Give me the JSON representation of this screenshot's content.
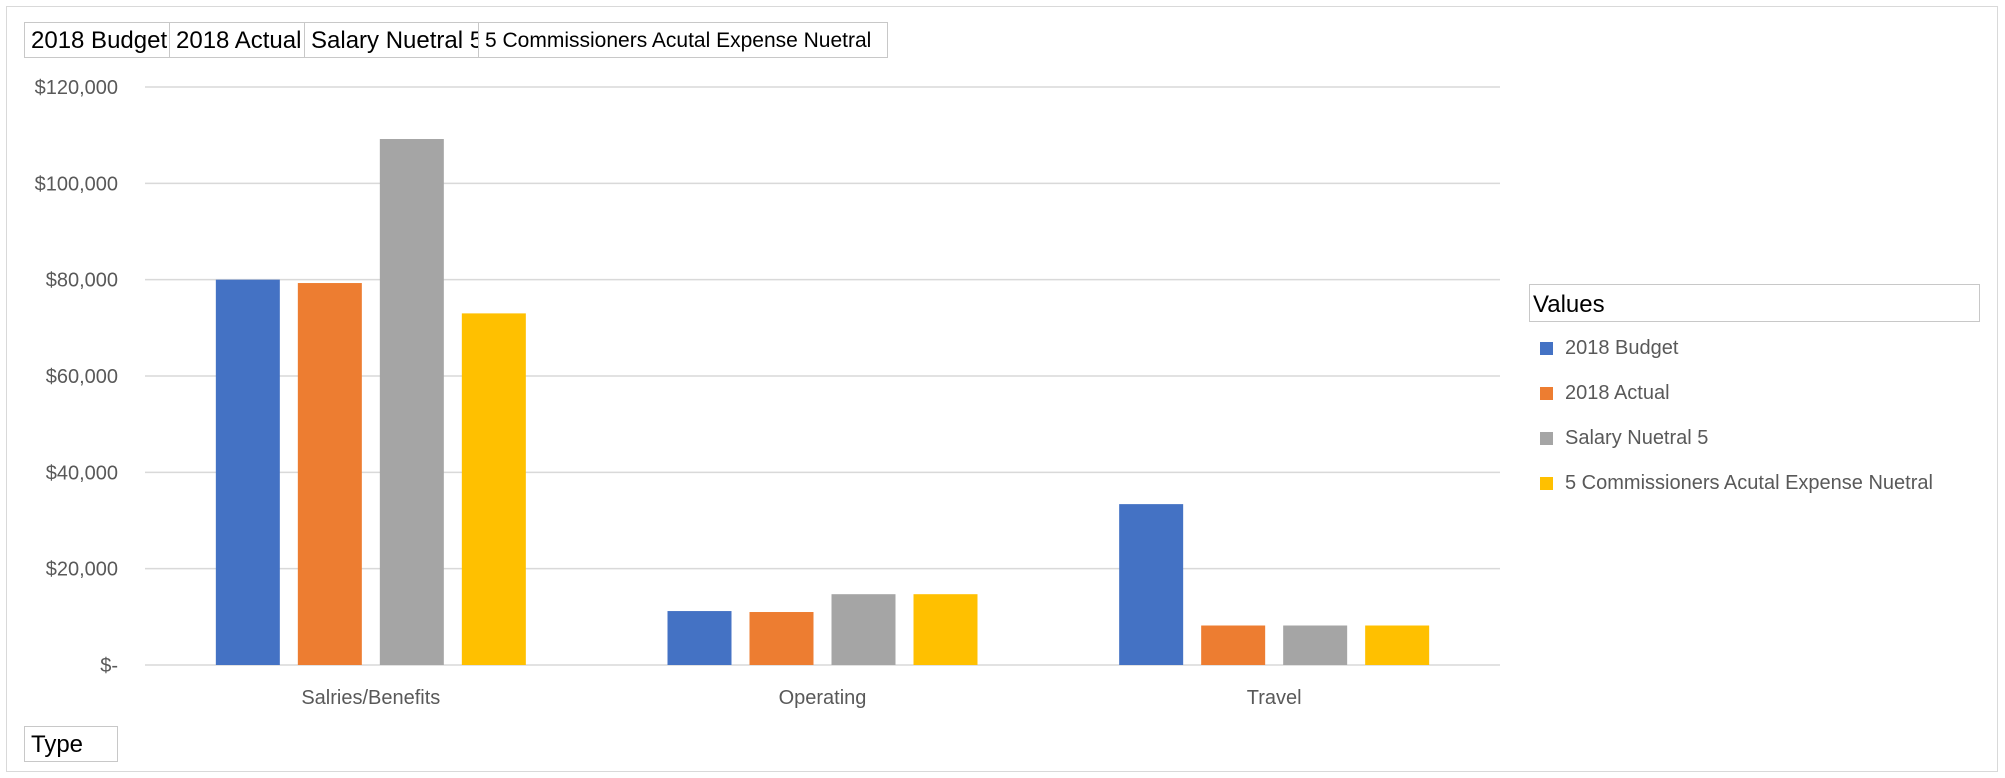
{
  "pivot_fields": {
    "values_fields": [
      "2018 Budget",
      "2018 Actual",
      "Salary Nuetral 5",
      "5 Commissioners Acutal Expense Nuetral"
    ],
    "axis_field": "Type",
    "legend_field": "Values"
  },
  "chart_data": {
    "type": "bar",
    "title": "",
    "xlabel": "",
    "ylabel": "",
    "categories": [
      "Salries/Benefits",
      "Operating",
      "Travel"
    ],
    "series": [
      {
        "name": "2018 Budget",
        "color": "#4472c4",
        "values": [
          80000,
          11200,
          33400
        ]
      },
      {
        "name": "2018 Actual",
        "color": "#ed7d31",
        "values": [
          79300,
          11000,
          8200
        ]
      },
      {
        "name": "Salary Nuetral 5",
        "color": "#a5a5a5",
        "values": [
          109200,
          14700,
          8200
        ]
      },
      {
        "name": "5 Commissioners Acutal Expense Nuetral",
        "color": "#ffc000",
        "values": [
          73000,
          14700,
          8200
        ]
      }
    ],
    "ylim": [
      0,
      120000
    ],
    "y_ticks": [
      0,
      20000,
      40000,
      60000,
      80000,
      100000,
      120000
    ],
    "y_tick_labels": [
      "$-",
      "$20,000",
      "$40,000",
      "$60,000",
      "$80,000",
      "$100,000",
      "$120,000"
    ],
    "grid": true,
    "legend_position": "right"
  }
}
